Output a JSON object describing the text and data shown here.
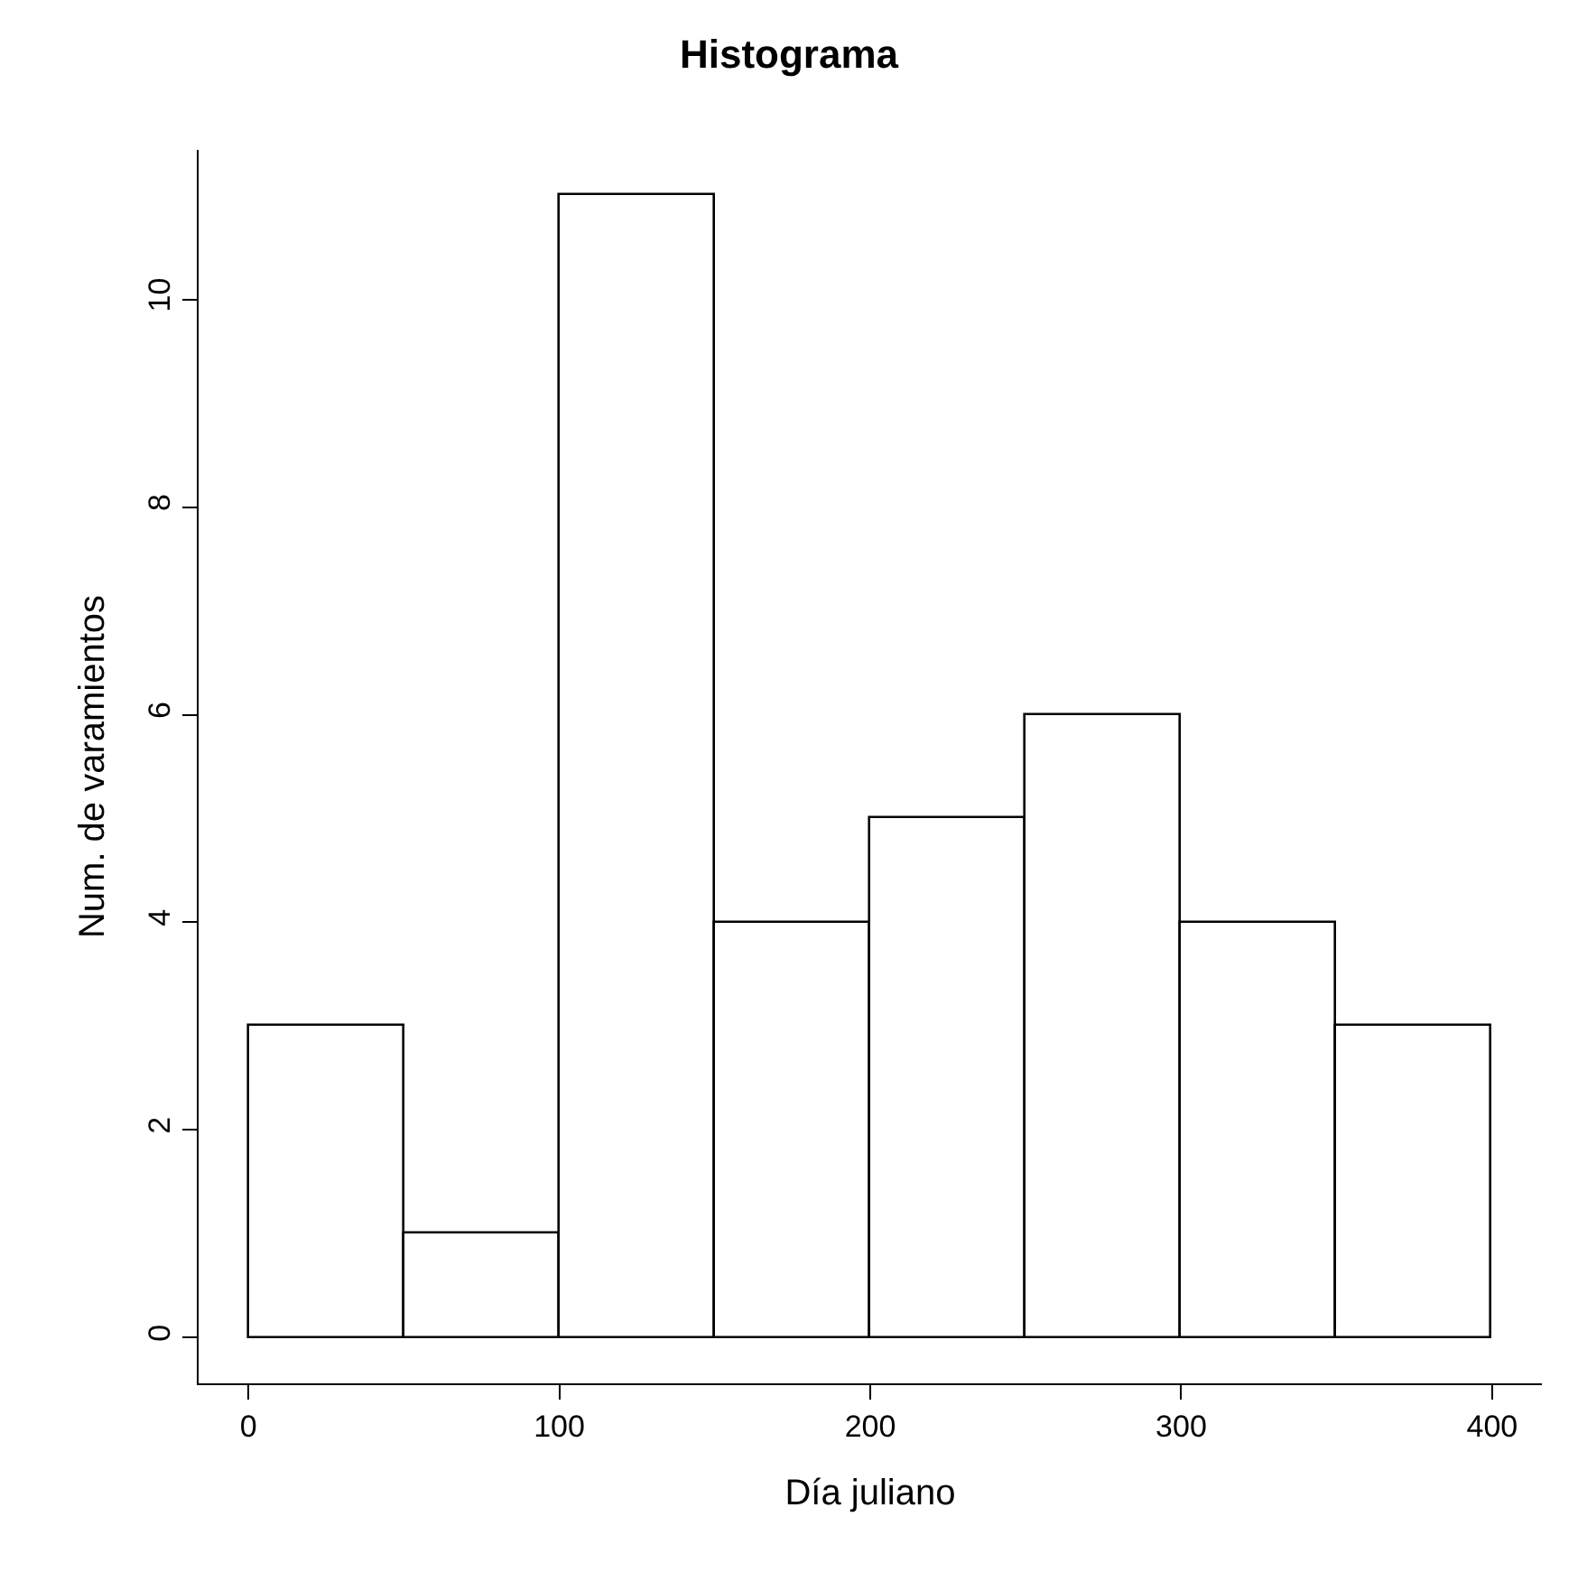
{
  "chart_data": {
    "type": "histogram",
    "title": "Histograma",
    "xlabel": "Día juliano",
    "ylabel": "Num. de varamientos",
    "bins": [
      0,
      50,
      100,
      150,
      200,
      250,
      300,
      350,
      400
    ],
    "values": [
      3,
      1,
      11,
      4,
      5,
      6,
      4,
      3
    ],
    "color": "#ffffff",
    "xlim": [
      -16,
      416
    ],
    "xticks": [
      0,
      100,
      200,
      300,
      400
    ],
    "ylim": [
      -0.44,
      11.44
    ],
    "yticks": [
      0,
      2,
      4,
      6,
      8,
      10
    ]
  }
}
